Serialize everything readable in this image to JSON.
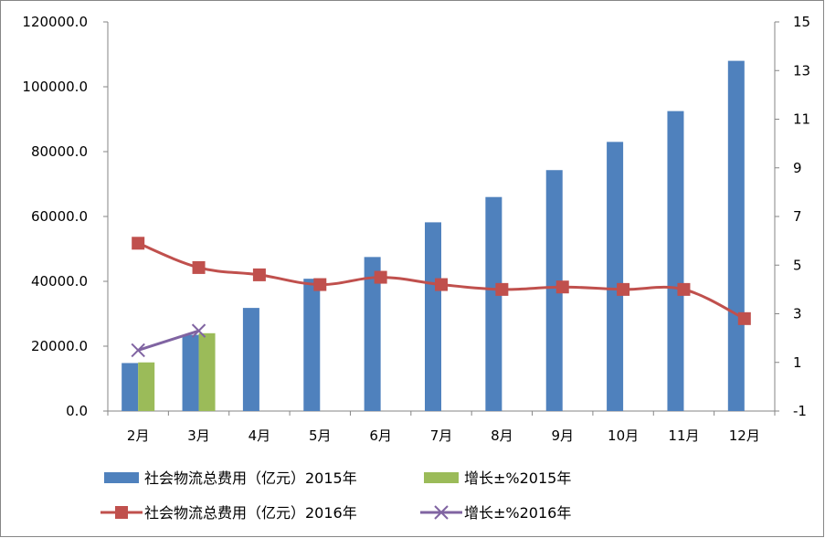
{
  "chart_data": {
    "type": "bar",
    "categories": [
      "2月",
      "3月",
      "4月",
      "5月",
      "6月",
      "7月",
      "8月",
      "9月",
      "10月",
      "11月",
      "12月"
    ],
    "y_left": {
      "ylim": [
        0,
        120000
      ],
      "ticks": [
        "0.0",
        "20000.0",
        "40000.0",
        "60000.0",
        "80000.0",
        "100000.0",
        "120000.0"
      ]
    },
    "y_right": {
      "ylim": [
        -1,
        15
      ],
      "ticks": [
        "-1",
        "1",
        "3",
        "5",
        "7",
        "9",
        "11",
        "13",
        "15"
      ]
    },
    "series": [
      {
        "name": "社会物流总费用（亿元）2015年",
        "type": "bar",
        "axis": "left",
        "color": "#4F81BD",
        "values": [
          14800,
          23500,
          31800,
          40800,
          47500,
          58200,
          66000,
          74300,
          83000,
          92500,
          108000
        ]
      },
      {
        "name": "增长±%2015年",
        "type": "bar",
        "axis": "right",
        "color": "#9BBB59",
        "values": [
          1.0,
          2.2,
          null,
          null,
          null,
          null,
          null,
          null,
          null,
          null,
          null
        ]
      },
      {
        "name": "社会物流总费用（亿元）2016年",
        "type": "line",
        "axis": "right",
        "color": "#C0504D",
        "marker": "square",
        "values": [
          5.9,
          4.9,
          4.6,
          4.2,
          4.5,
          4.2,
          4.0,
          4.1,
          4.0,
          4.0,
          2.8
        ]
      },
      {
        "name": "增长±%2016年",
        "type": "line",
        "axis": "right",
        "color": "#8064A2",
        "marker": "x",
        "values": [
          1.5,
          2.3,
          null,
          null,
          null,
          null,
          null,
          null,
          null,
          null,
          null
        ]
      }
    ],
    "grid": false,
    "legend_position": "bottom"
  }
}
